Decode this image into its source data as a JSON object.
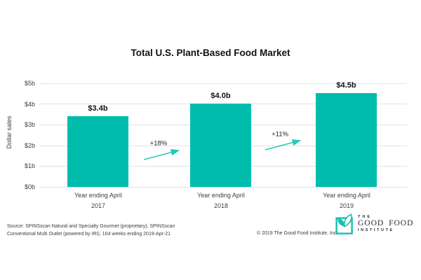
{
  "title": "Total U.S. Plant-Based Food Market",
  "chart_data": {
    "type": "bar",
    "title": "Total U.S. Plant-Based Food Market",
    "categories": [
      [
        "Year ending April",
        "2017"
      ],
      [
        "Year ending April",
        "2018"
      ],
      [
        "Year ending April",
        "2019"
      ]
    ],
    "values": [
      3.4,
      4.0,
      4.5
    ],
    "bar_labels": [
      "$3.4b",
      "$4.0b",
      "$4.5b"
    ],
    "growth_annotations": [
      {
        "label": "+18%",
        "from": "2017",
        "to": "2018"
      },
      {
        "label": "+11%",
        "from": "2018",
        "to": "2019"
      }
    ],
    "xlabel": "",
    "ylabel": "Dollar sales",
    "ylim": [
      0,
      5
    ],
    "yticks": [
      "$0b",
      "$1b",
      "$2b",
      "$3b",
      "$4b",
      "$5b"
    ],
    "grid": true,
    "legend": false,
    "colors": {
      "bar": "#00BCAD",
      "arrow": "#2BC8B8",
      "gridline": "#E2E2E2",
      "logo_teal": "#17BFB0",
      "logo_text": "#1E2A36"
    }
  },
  "footer": {
    "source_line1": "Source: SPINSscan Natural and Specialty Gourmet (proprietary), SPINSscan",
    "source_line2": "Conventional Multi Outlet (powered by IRI), 104 weeks ending 2019-Apr-21",
    "copyright": "© 2019 The Good Food Institute, Inc.",
    "logo": {
      "line_the": "THE",
      "line_main": "GOOD FOOD",
      "line_institute": "INSTITUTE"
    }
  }
}
